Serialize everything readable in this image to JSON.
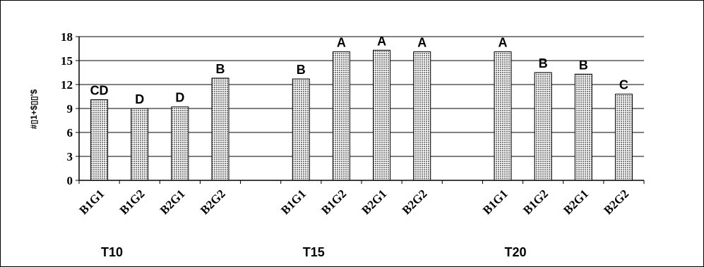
{
  "chart_data": {
    "type": "bar",
    "ylabel": "#▯1+$▯▯'$",
    "ylim": [
      0,
      18
    ],
    "yticks": [
      0,
      3,
      6,
      9,
      12,
      15,
      18
    ],
    "grid": true,
    "bar_color": "#9a9a9a",
    "groups": [
      {
        "name": "T10",
        "bars": [
          {
            "category": "B1G1",
            "value": 10.1,
            "letter": "CD"
          },
          {
            "category": "B1G2",
            "value": 9.0,
            "letter": "D"
          },
          {
            "category": "B2G1",
            "value": 9.2,
            "letter": "D"
          },
          {
            "category": "B2G2",
            "value": 12.8,
            "letter": "B"
          }
        ]
      },
      {
        "name": "T15",
        "bars": [
          {
            "category": "B1G1",
            "value": 12.7,
            "letter": "B"
          },
          {
            "category": "B1G2",
            "value": 16.1,
            "letter": "A"
          },
          {
            "category": "B2G1",
            "value": 16.3,
            "letter": "A"
          },
          {
            "category": "B2G2",
            "value": 16.1,
            "letter": "A"
          }
        ]
      },
      {
        "name": "T20",
        "bars": [
          {
            "category": "B1G1",
            "value": 16.1,
            "letter": "A"
          },
          {
            "category": "B1G2",
            "value": 13.5,
            "letter": "B"
          },
          {
            "category": "B2G1",
            "value": 13.3,
            "letter": "B"
          },
          {
            "category": "B2G2",
            "value": 10.8,
            "letter": "C"
          }
        ]
      }
    ]
  }
}
